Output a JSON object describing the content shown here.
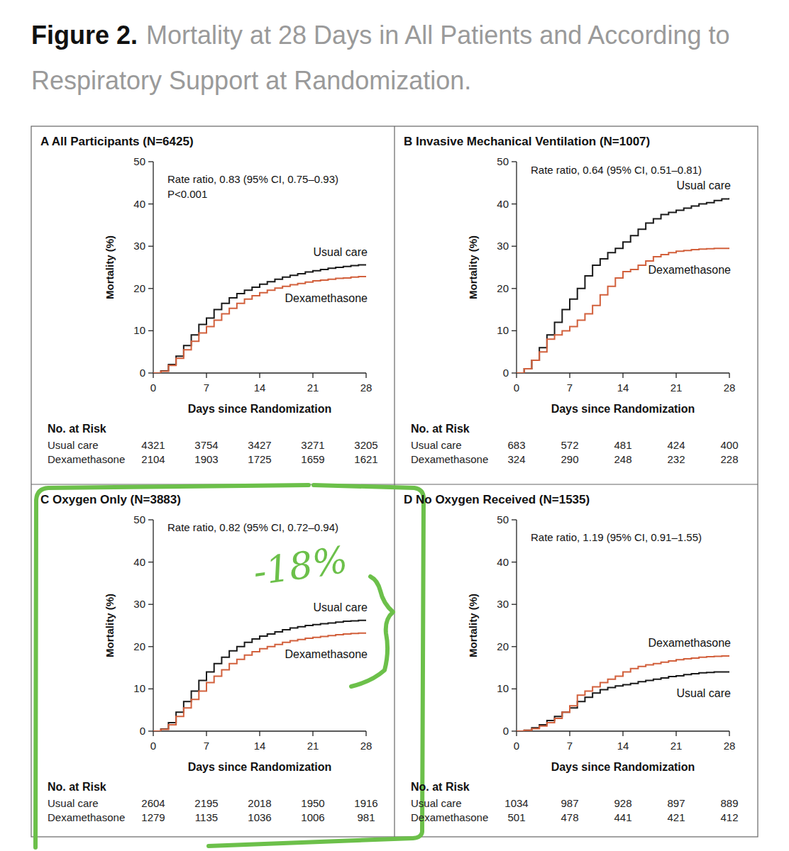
{
  "figure": {
    "label": "Figure 2.",
    "title": "Mortality at 28 Days in All Patients and According to Respiratory Support at Randomization."
  },
  "chart_data": [
    {
      "type": "line",
      "line_style": "step",
      "title": "A All Participants (N=6425)",
      "annotations": [
        "Rate ratio, 0.83 (95% CI, 0.75–0.93)",
        "P<0.001"
      ],
      "x_label": "Days since Randomization",
      "y_label": "Mortality (%)",
      "xlim": [
        0,
        28
      ],
      "xticks": [
        0,
        7,
        14,
        21,
        28
      ],
      "ylim": [
        0,
        50
      ],
      "yticks": [
        0,
        10,
        20,
        30,
        40,
        50
      ],
      "grid": false,
      "x": [
        0,
        1,
        2,
        3,
        4,
        5,
        6,
        7,
        8,
        9,
        10,
        11,
        12,
        13,
        14,
        15,
        16,
        17,
        18,
        19,
        20,
        21,
        22,
        23,
        24,
        25,
        26,
        27,
        28
      ],
      "at_risk_title": "No. at Risk",
      "series": [
        {
          "name": "Usual care",
          "color": "#1a1a1a",
          "values": [
            0,
            0.5,
            2,
            4,
            6.5,
            9,
            11.5,
            13,
            15,
            16.5,
            17.8,
            18.8,
            19.6,
            20.3,
            21,
            21.6,
            22.2,
            22.7,
            23.1,
            23.5,
            23.9,
            24.2,
            24.5,
            24.8,
            25,
            25.2,
            25.4,
            25.6,
            25.7
          ],
          "at_risk": [
            4321,
            3754,
            3427,
            3271,
            3205
          ]
        },
        {
          "name": "Dexamethasone",
          "color": "#d2603c",
          "values": [
            0,
            0.4,
            1.8,
            3.5,
            5.5,
            7.5,
            9.5,
            11,
            12.5,
            14,
            15.3,
            16.5,
            17.5,
            18.3,
            19,
            19.6,
            20.1,
            20.5,
            20.9,
            21.2,
            21.5,
            21.8,
            22,
            22.2,
            22.4,
            22.5,
            22.7,
            22.8,
            22.9
          ],
          "at_risk": [
            2104,
            1903,
            1725,
            1659,
            1621
          ]
        }
      ]
    },
    {
      "type": "line",
      "line_style": "step",
      "title": "B Invasive Mechanical Ventilation (N=1007)",
      "annotations": [
        "Rate ratio, 0.64 (95% CI, 0.51–0.81)"
      ],
      "x_label": "Days since Randomization",
      "y_label": "Mortality (%)",
      "xlim": [
        0,
        28
      ],
      "xticks": [
        0,
        7,
        14,
        21,
        28
      ],
      "ylim": [
        0,
        50
      ],
      "yticks": [
        0,
        10,
        20,
        30,
        40,
        50
      ],
      "grid": false,
      "x": [
        0,
        1,
        2,
        3,
        4,
        5,
        6,
        7,
        8,
        9,
        10,
        11,
        12,
        13,
        14,
        15,
        16,
        17,
        18,
        19,
        20,
        21,
        22,
        23,
        24,
        25,
        26,
        27,
        28
      ],
      "at_risk_title": "No. at Risk",
      "series": [
        {
          "name": "Usual care",
          "color": "#1a1a1a",
          "values": [
            0,
            1,
            3,
            6,
            9,
            12,
            15,
            17.5,
            20,
            23,
            25.5,
            27,
            28.5,
            29.5,
            31,
            32.5,
            34,
            35.5,
            36.5,
            37.5,
            38,
            38.5,
            39,
            39.5,
            40,
            40.3,
            40.8,
            41.2,
            41.4
          ],
          "at_risk": [
            683,
            572,
            481,
            424,
            400
          ]
        },
        {
          "name": "Dexamethasone",
          "color": "#d2603c",
          "values": [
            0,
            1,
            3,
            5,
            8,
            9,
            10,
            11,
            12.5,
            14,
            16,
            18.5,
            20.5,
            22.5,
            24,
            24.5,
            25.5,
            26.5,
            27.5,
            28,
            28.5,
            28.8,
            29,
            29.2,
            29.3,
            29.4,
            29.5,
            29.5,
            29.6
          ],
          "at_risk": [
            324,
            290,
            248,
            232,
            228
          ]
        }
      ]
    },
    {
      "type": "line",
      "line_style": "step",
      "title": "C Oxygen Only (N=3883)",
      "annotations": [
        "Rate ratio, 0.82 (95% CI, 0.72–0.94)"
      ],
      "handwritten_annotation": "-18%",
      "x_label": "Days since Randomization",
      "y_label": "Mortality (%)",
      "xlim": [
        0,
        28
      ],
      "xticks": [
        0,
        7,
        14,
        21,
        28
      ],
      "ylim": [
        0,
        50
      ],
      "yticks": [
        0,
        10,
        20,
        30,
        40,
        50
      ],
      "grid": false,
      "x": [
        0,
        1,
        2,
        3,
        4,
        5,
        6,
        7,
        8,
        9,
        10,
        11,
        12,
        13,
        14,
        15,
        16,
        17,
        18,
        19,
        20,
        21,
        22,
        23,
        24,
        25,
        26,
        27,
        28
      ],
      "at_risk_title": "No. at Risk",
      "series": [
        {
          "name": "Usual care",
          "color": "#1a1a1a",
          "values": [
            0,
            0.5,
            2,
            4.5,
            7,
            9.5,
            12,
            14,
            16,
            17.5,
            19,
            20,
            21,
            21.8,
            22.5,
            23,
            23.5,
            24,
            24.4,
            24.7,
            25,
            25.2,
            25.4,
            25.6,
            25.8,
            26,
            26.1,
            26.2,
            26.3
          ],
          "at_risk": [
            2604,
            2195,
            2018,
            1950,
            1916
          ]
        },
        {
          "name": "Dexamethasone",
          "color": "#d2603c",
          "values": [
            0,
            0.4,
            1.5,
            3.5,
            5.5,
            7.5,
            9.5,
            11.5,
            13,
            14.5,
            16,
            17,
            18,
            18.8,
            19.5,
            20,
            20.5,
            21,
            21.4,
            21.7,
            22,
            22.2,
            22.4,
            22.6,
            22.8,
            23,
            23.1,
            23.2,
            23.3
          ],
          "at_risk": [
            1279,
            1135,
            1036,
            1006,
            981
          ]
        }
      ]
    },
    {
      "type": "line",
      "line_style": "step",
      "title": "D No Oxygen Received (N=1535)",
      "annotations": [
        "Rate ratio, 1.19 (95% CI, 0.91–1.55)"
      ],
      "x_label": "Days since Randomization",
      "y_label": "Mortality (%)",
      "xlim": [
        0,
        28
      ],
      "xticks": [
        0,
        7,
        14,
        21,
        28
      ],
      "ylim": [
        0,
        50
      ],
      "yticks": [
        0,
        10,
        20,
        30,
        40,
        50
      ],
      "grid": false,
      "x": [
        0,
        1,
        2,
        3,
        4,
        5,
        6,
        7,
        8,
        9,
        10,
        11,
        12,
        13,
        14,
        15,
        16,
        17,
        18,
        19,
        20,
        21,
        22,
        23,
        24,
        25,
        26,
        27,
        28
      ],
      "at_risk_title": "No. at Risk",
      "series": [
        {
          "name": "Usual care",
          "color": "#1a1a1a",
          "values": [
            0,
            0.2,
            0.8,
            1.5,
            2.5,
            3.5,
            4.5,
            5.5,
            7,
            8,
            9,
            9.8,
            10.3,
            10.7,
            11,
            11.3,
            11.7,
            12,
            12.3,
            12.6,
            12.9,
            13.1,
            13.4,
            13.6,
            13.8,
            13.9,
            14,
            14,
            14.1
          ],
          "at_risk": [
            1034,
            987,
            928,
            897,
            889
          ]
        },
        {
          "name": "Dexamethasone",
          "color": "#d2603c",
          "values": [
            0,
            0.2,
            0.6,
            1.2,
            2,
            3,
            4.5,
            6,
            8.5,
            9.5,
            10.5,
            11.5,
            12.3,
            13,
            14,
            14.8,
            15.3,
            15.7,
            16,
            16.3,
            16.6,
            16.9,
            17.1,
            17.3,
            17.5,
            17.6,
            17.7,
            17.8,
            17.9
          ],
          "at_risk": [
            501,
            478,
            441,
            421,
            412
          ]
        }
      ]
    }
  ]
}
